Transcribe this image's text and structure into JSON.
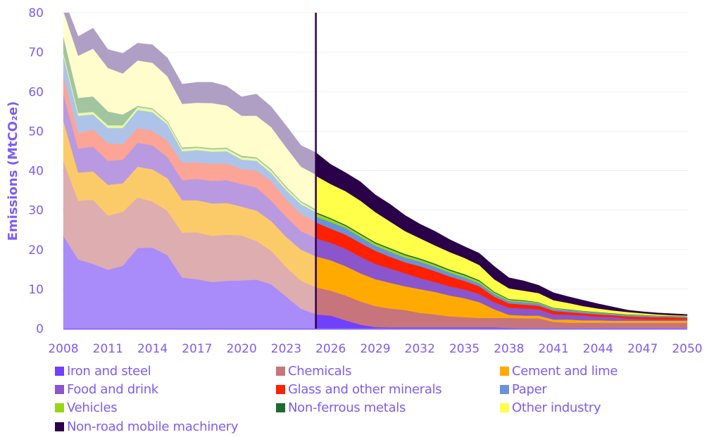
{
  "chart_data": {
    "type": "area",
    "stacked": true,
    "title": "",
    "xlabel": "",
    "ylabel": "Emissions (MtCO₂e)",
    "ylim": [
      0,
      80
    ],
    "yticks": [
      "0",
      "10",
      "20",
      "30",
      "40",
      "50",
      "60",
      "70",
      "80"
    ],
    "xlim": [
      2008,
      2050
    ],
    "xticks": [
      "2008",
      "2011",
      "2014",
      "2017",
      "2020",
      "2023",
      "2026",
      "2029",
      "2032",
      "2035",
      "2038",
      "2041",
      "2044",
      "2047",
      "2050"
    ],
    "grid": "horizontal",
    "legend_position": "bottom",
    "divider_year": 2025,
    "historical": {
      "x": [
        2008,
        2009,
        2010,
        2011,
        2012,
        2013,
        2014,
        2015,
        2016,
        2017,
        2018,
        2019,
        2020,
        2021,
        2022,
        2023,
        2024,
        2025
      ],
      "colors": [
        "#a98bfa",
        "#ddadb0",
        "#fccb69",
        "#b99ae0",
        "#fca495",
        "#aec3e8",
        "#e8f8a6",
        "#a1c59f",
        "#fefdcb",
        "#b09fc4"
      ],
      "series": [
        {
          "name": "Iron and steel",
          "values": [
            23.5,
            17.5,
            16.4,
            14.9,
            15.9,
            20.4,
            20.5,
            18.6,
            12.9,
            12.5,
            11.8,
            12.1,
            12.2,
            12.4,
            11.2,
            8.1,
            5.0,
            3.7
          ]
        },
        {
          "name": "Chemicals",
          "values": [
            19.0,
            14.9,
            16.2,
            13.7,
            13.7,
            12.8,
            11.7,
            11.2,
            11.4,
            11.9,
            11.7,
            11.7,
            11.4,
            9.8,
            8.5,
            7.5,
            7.1,
            6.8
          ]
        },
        {
          "name": "Cement and lime",
          "values": [
            10.1,
            7.1,
            7.2,
            7.8,
            7.2,
            7.8,
            8.1,
            8.3,
            8.2,
            8.1,
            8.2,
            8.0,
            7.3,
            7.7,
            7.5,
            7.6,
            7.9,
            7.8
          ]
        },
        {
          "name": "Food and drink",
          "values": [
            6.8,
            6.1,
            6.3,
            6.1,
            6.0,
            6.1,
            6.1,
            5.4,
            5.1,
            5.4,
            5.7,
            5.8,
            5.7,
            5.8,
            5.2,
            5.1,
            4.7,
            4.7
          ]
        },
        {
          "name": "Glass and other minerals",
          "values": [
            4.5,
            3.9,
            4.3,
            4.4,
            3.9,
            3.7,
            3.7,
            4.1,
            4.4,
            4.2,
            4.3,
            4.2,
            3.8,
            4.3,
            4.9,
            4.4,
            4.3,
            4.1
          ]
        },
        {
          "name": "Paper",
          "values": [
            5.1,
            4.4,
            3.8,
            3.9,
            4.1,
            4.6,
            4.7,
            4.1,
            2.9,
            3.1,
            3.1,
            3.1,
            2.4,
            2.5,
            2.1,
            2.4,
            2.5,
            2.4
          ]
        },
        {
          "name": "Vehicles",
          "values": [
            0.8,
            0.7,
            0.7,
            0.7,
            0.7,
            0.7,
            0.7,
            0.6,
            0.6,
            0.6,
            0.6,
            0.6,
            0.6,
            0.6,
            0.6,
            0.5,
            0.5,
            0.3
          ]
        },
        {
          "name": "Non-ferrous metals",
          "values": [
            4.2,
            3.8,
            3.9,
            3.5,
            2.7,
            0.3,
            0.3,
            0.3,
            0.4,
            0.3,
            0.3,
            0.3,
            0.4,
            0.3,
            0.4,
            0.4,
            0.3,
            0.4
          ]
        },
        {
          "name": "Other industry",
          "values": [
            6.5,
            10.7,
            12.1,
            11.0,
            10.4,
            11.5,
            11.5,
            11.3,
            11.0,
            11.1,
            11.4,
            10.7,
            10.1,
            10.5,
            10.6,
            9.9,
            8.7,
            8.8
          ]
        },
        {
          "name": "Non-road mobile machinery",
          "values": [
            3.2,
            4.9,
            5.2,
            4.7,
            5.1,
            4.4,
            4.6,
            4.7,
            5.0,
            5.2,
            5.3,
            4.9,
            4.8,
            5.5,
            5.2,
            5.5,
            5.4,
            5.6
          ]
        }
      ]
    },
    "projection": {
      "x": [
        2025,
        2026,
        2027,
        2028,
        2029,
        2030,
        2031,
        2032,
        2033,
        2034,
        2035,
        2036,
        2037,
        2038,
        2039,
        2040,
        2041,
        2042,
        2043,
        2044,
        2045,
        2046,
        2047,
        2048,
        2049,
        2050
      ],
      "colors": [
        "#7040ff",
        "#c8747c",
        "#ffaa00",
        "#8b55cc",
        "#ff2000",
        "#6a92d8",
        "#9ad41a",
        "#1e6b30",
        "#ffff4a",
        "#2a0048"
      ],
      "series": [
        {
          "name": "Iron and steel",
          "values": [
            3.6,
            3.3,
            2.1,
            1.0,
            0.4,
            0.3,
            0.3,
            0.3,
            0.3,
            0.3,
            0.3,
            0.3,
            0.3,
            0.2,
            0.1,
            0.1,
            0.1,
            0.1,
            0.1,
            0.1,
            0.1,
            0.1,
            0.1,
            0.1,
            0.1,
            0.1
          ]
        },
        {
          "name": "Chemicals",
          "values": [
            6.9,
            6.3,
            6.3,
            5.9,
            5.3,
            4.8,
            4.4,
            3.7,
            3.3,
            2.8,
            2.6,
            2.4,
            2.4,
            2.5,
            2.5,
            2.5,
            1.6,
            1.4,
            1.4,
            1.4,
            1.4,
            1.4,
            1.4,
            1.4,
            1.4,
            1.4
          ]
        },
        {
          "name": "Cement and lime",
          "values": [
            7.8,
            7.7,
            7.4,
            7.1,
            6.8,
            6.5,
            6.0,
            6.0,
            5.7,
            5.3,
            4.8,
            4.0,
            2.2,
            0.8,
            0.7,
            0.7,
            0.6,
            0.8,
            0.6,
            0.6,
            0.5,
            0.5,
            0.5,
            0.5,
            0.5,
            0.5
          ]
        },
        {
          "name": "Food and drink",
          "values": [
            4.6,
            4.4,
            4.4,
            4.2,
            3.9,
            3.6,
            3.3,
            2.8,
            2.5,
            2.3,
            2.2,
            2.1,
            1.8,
            1.8,
            1.8,
            1.6,
            1.3,
            1.2,
            1.2,
            0.9,
            0.9,
            0.5,
            0.4,
            0.3,
            0.3,
            0.3
          ]
        },
        {
          "name": "Glass and other minerals",
          "values": [
            4.0,
            3.6,
            3.6,
            3.5,
            3.3,
            3.0,
            2.8,
            3.0,
            2.8,
            2.5,
            2.2,
            1.9,
            1.4,
            1.1,
            1.0,
            0.9,
            0.9,
            0.7,
            0.6,
            0.6,
            0.5,
            0.6,
            0.6,
            0.6,
            0.6,
            0.4
          ]
        },
        {
          "name": "Paper",
          "values": [
            1.5,
            1.7,
            1.7,
            1.5,
            1.3,
            1.3,
            1.2,
            1.2,
            1.1,
            1.0,
            0.9,
            0.8,
            0.7,
            0.6,
            0.6,
            0.6,
            0.5,
            0.5,
            0.4,
            0.4,
            0.3,
            0.3,
            0.3,
            0.2,
            0.1,
            0.2
          ]
        },
        {
          "name": "Vehicles",
          "values": [
            0.8,
            0.7,
            0.5,
            0.6,
            0.6,
            0.6,
            0.6,
            0.5,
            0.5,
            0.5,
            0.5,
            0.5,
            0.4,
            0.3,
            0.3,
            0.2,
            0.2,
            0.1,
            0.1,
            0.1,
            0.1,
            0.1,
            0.1,
            0.1,
            0.1,
            0.1
          ]
        },
        {
          "name": "Non-ferrous metals",
          "values": [
            0.3,
            0.3,
            0.3,
            0.3,
            0.3,
            0.3,
            0.3,
            0.3,
            0.3,
            0.3,
            0.3,
            0.3,
            0.2,
            0.2,
            0.2,
            0.1,
            0.1,
            0.1,
            0.1,
            0.1,
            0.1,
            0.1,
            0.1,
            0.1,
            0.1,
            0.1
          ]
        },
        {
          "name": "Other industry",
          "values": [
            9.2,
            8.6,
            8.5,
            8.3,
            7.6,
            6.7,
            5.8,
            5.1,
            4.6,
            4.4,
            4.1,
            3.8,
            3.1,
            2.7,
            2.4,
            2.3,
            1.9,
            1.6,
            1.2,
            0.9,
            0.7,
            0.6,
            0.4,
            0.3,
            0.2,
            0.2
          ]
        },
        {
          "name": "Non-road mobile machinery",
          "values": [
            5.9,
            5.0,
            4.7,
            4.8,
            4.4,
            4.4,
            4.0,
            3.6,
            3.6,
            3.2,
            2.9,
            3.0,
            3.3,
            2.7,
            2.5,
            2.0,
            1.9,
            1.6,
            1.5,
            1.2,
            0.9,
            0.5,
            0.4,
            0.4,
            0.4,
            0.3
          ]
        }
      ]
    },
    "legend": [
      {
        "label": "Iron and steel",
        "color": "#7040ff"
      },
      {
        "label": "Chemicals",
        "color": "#c8747c"
      },
      {
        "label": "Cement and lime",
        "color": "#ffaa00"
      },
      {
        "label": "Food and drink",
        "color": "#8b55cc"
      },
      {
        "label": "Glass and other minerals",
        "color": "#ff2000"
      },
      {
        "label": "Paper",
        "color": "#6a92d8"
      },
      {
        "label": "Vehicles",
        "color": "#9ad41a"
      },
      {
        "label": "Non-ferrous metals",
        "color": "#1e6b30"
      },
      {
        "label": "Other industry",
        "color": "#ffff4a"
      },
      {
        "label": "Non-road mobile machinery",
        "color": "#2a0048"
      }
    ]
  }
}
